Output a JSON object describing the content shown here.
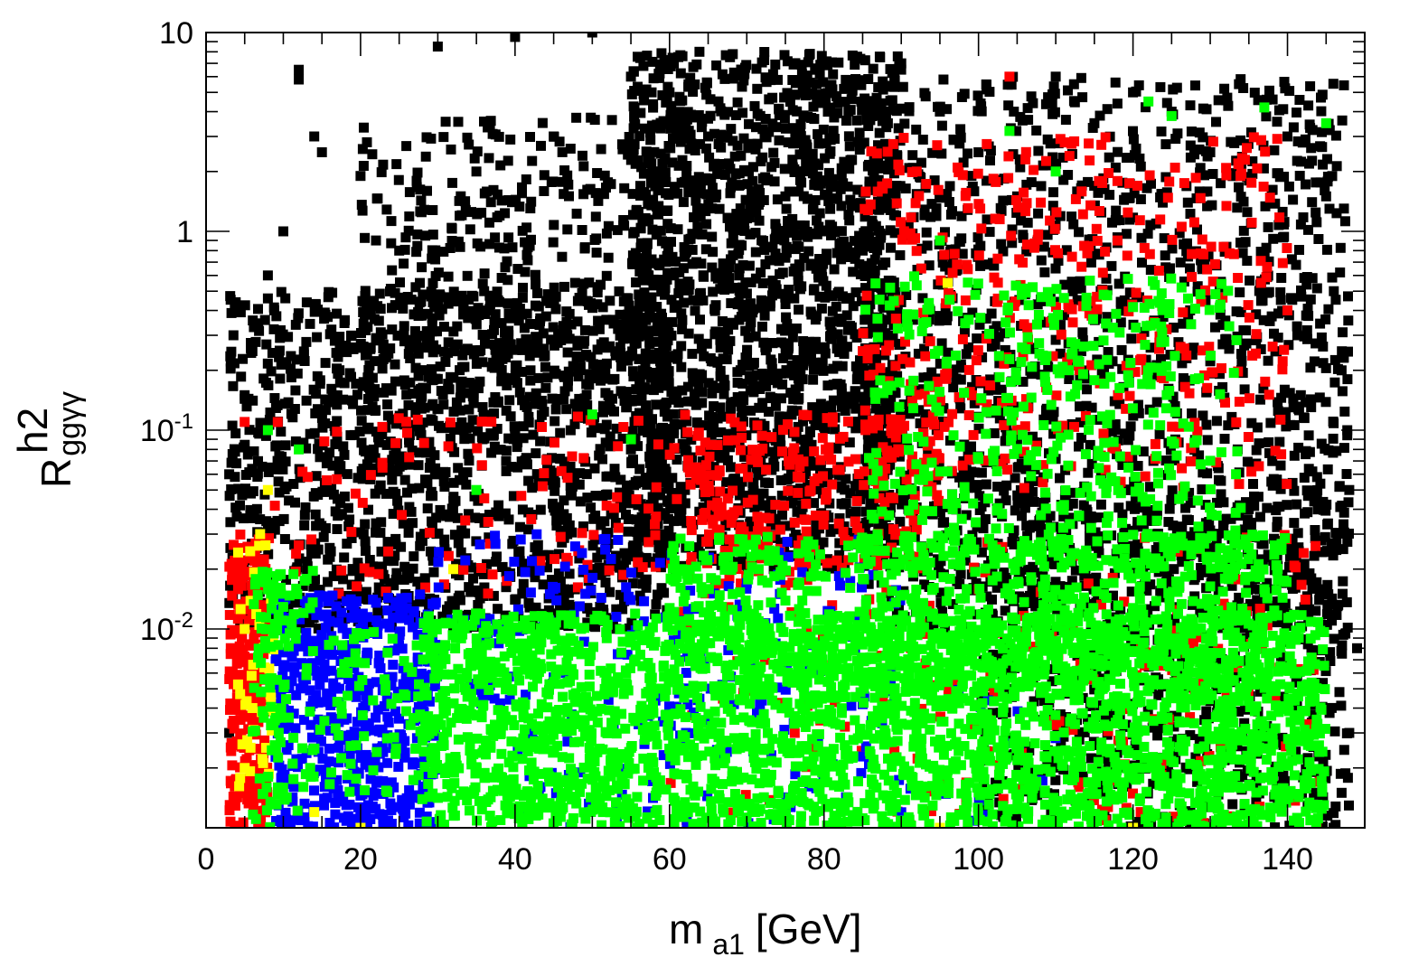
{
  "chart_data": {
    "type": "scatter",
    "title": "",
    "xlabel": {
      "main": "m",
      "sub": "a1",
      "unit": "[GeV]"
    },
    "ylabel": {
      "main": "R",
      "sup": "h2",
      "sub": "ggγγ"
    },
    "xlim": [
      0,
      150
    ],
    "ylim": [
      0.001,
      10
    ],
    "yscale": "log",
    "grid": false,
    "legend": "none",
    "x_ticks": [
      "0",
      "20",
      "40",
      "60",
      "80",
      "100",
      "120",
      "140"
    ],
    "x_tick_values": [
      0,
      20,
      40,
      60,
      80,
      100,
      120,
      140
    ],
    "y_ticks": [
      {
        "value": 10,
        "base": "10",
        "exp": ""
      },
      {
        "value": 1,
        "base": "1",
        "exp": ""
      },
      {
        "value": 0.1,
        "base": "10",
        "exp": "-1"
      },
      {
        "value": 0.01,
        "base": "10",
        "exp": "-2"
      }
    ],
    "series_colors": {
      "black": "#000000",
      "red": "#ff0000",
      "blue": "#0000ff",
      "yellow": "#ffff00",
      "green": "#00ff00"
    },
    "series": [
      {
        "color": "black",
        "points": [
          [
            12,
            6.5
          ],
          [
            12,
            5.8
          ],
          [
            14,
            3
          ],
          [
            15,
            2.5
          ],
          [
            10,
            1
          ],
          [
            8,
            0.6
          ],
          [
            6,
            0.25
          ],
          [
            5,
            0.15
          ],
          [
            20,
            1.9
          ],
          [
            22,
            0.9
          ],
          [
            25,
            0.8
          ],
          [
            30,
            8.5
          ],
          [
            35,
            2
          ],
          [
            38,
            1.2
          ],
          [
            40,
            9.5
          ],
          [
            45,
            3
          ],
          [
            50,
            10
          ],
          [
            55,
            6
          ],
          [
            60,
            5
          ],
          [
            65,
            3
          ],
          [
            70,
            2
          ],
          [
            75,
            1.5
          ],
          [
            80,
            1
          ],
          [
            85,
            0.8
          ],
          [
            90,
            7
          ],
          [
            95,
            4
          ],
          [
            100,
            2.5
          ],
          [
            105,
            1.5
          ],
          [
            110,
            6
          ],
          [
            115,
            3.5
          ],
          [
            120,
            5
          ],
          [
            125,
            4
          ],
          [
            130,
            2.5
          ],
          [
            135,
            1.8
          ],
          [
            140,
            3
          ],
          [
            145,
            1.5
          ],
          [
            146,
            0.5
          ],
          [
            147,
            0.2
          ],
          [
            148,
            0.05
          ],
          [
            149,
            0.008
          ],
          [
            148,
            0.003
          ],
          [
            147,
            0.0015
          ],
          [
            3,
            0.06
          ],
          [
            3,
            0.003
          ],
          [
            36,
            0.5
          ],
          [
            42,
            0.2
          ],
          [
            48,
            0.12
          ],
          [
            55,
            0.08
          ],
          [
            62,
            0.05
          ]
        ],
        "clouds": [
          {
            "xr": [
              55,
              90
            ],
            "yr": [
              0.02,
              8
            ],
            "n": 1800
          },
          {
            "xr": [
              3,
              60
            ],
            "yr": [
              0.01,
              0.5
            ],
            "n": 1400
          },
          {
            "xr": [
              20,
              60
            ],
            "yr": [
              0.1,
              4
            ],
            "n": 420
          },
          {
            "xr": [
              85,
              148
            ],
            "yr": [
              0.01,
              6
            ],
            "n": 1500
          },
          {
            "xr": [
              100,
              148
            ],
            "yr": [
              0.001,
              0.05
            ],
            "n": 700
          }
        ]
      },
      {
        "color": "red",
        "points": [
          [
            5,
            0.11
          ],
          [
            104,
            6
          ],
          [
            140,
            0.4
          ],
          [
            92,
            2
          ],
          [
            118,
            0.9
          ],
          [
            85,
            0.25
          ]
        ],
        "clouds": [
          {
            "xr": [
              3,
              8
            ],
            "yr": [
              0.001,
              0.03
            ],
            "n": 260
          },
          {
            "xr": [
              8,
              70
            ],
            "yr": [
              0.015,
              0.12
            ],
            "n": 130
          },
          {
            "xr": [
              62,
              95
            ],
            "yr": [
              0.02,
              0.12
            ],
            "n": 230
          },
          {
            "xr": [
              85,
              140
            ],
            "yr": [
              0.05,
              3
            ],
            "n": 400
          },
          {
            "xr": [
              60,
              145
            ],
            "yr": [
              0.001,
              0.03
            ],
            "n": 220
          }
        ]
      },
      {
        "color": "blue",
        "points": [],
        "clouds": [
          {
            "xr": [
              9,
              30
            ],
            "yr": [
              0.001,
              0.015
            ],
            "n": 520
          },
          {
            "xr": [
              30,
              90
            ],
            "yr": [
              0.004,
              0.03
            ],
            "n": 170
          },
          {
            "xr": [
              40,
              110
            ],
            "yr": [
              0.001,
              0.005
            ],
            "n": 100
          }
        ]
      },
      {
        "color": "yellow",
        "points": [
          [
            96,
            0.55
          ],
          [
            8,
            0.05
          ],
          [
            7,
            0.03
          ],
          [
            5,
            0.01
          ],
          [
            6,
            0.004
          ],
          [
            5,
            0.002
          ],
          [
            14,
            0.0012
          ],
          [
            20,
            0.001
          ],
          [
            32,
            0.02
          ],
          [
            95,
            0.001
          ],
          [
            120,
            0.001
          ]
        ],
        "clouds": [
          {
            "xr": [
              4,
              9
            ],
            "yr": [
              0.0015,
              0.03
            ],
            "n": 40
          }
        ]
      },
      {
        "color": "green",
        "points": [
          [
            122,
            4.5
          ],
          [
            125,
            3.8
          ],
          [
            137,
            4.2
          ],
          [
            145,
            3.5
          ],
          [
            104,
            3.2
          ],
          [
            95,
            0.9
          ],
          [
            110,
            2
          ],
          [
            50,
            0.12
          ],
          [
            55,
            0.09
          ],
          [
            35,
            0.05
          ],
          [
            12,
            0.08
          ],
          [
            8,
            0.1
          ]
        ],
        "clouds": [
          {
            "xr": [
              28,
              145
            ],
            "yr": [
              0.001,
              0.012
            ],
            "n": 2600
          },
          {
            "xr": [
              60,
              140
            ],
            "yr": [
              0.005,
              0.03
            ],
            "n": 800
          },
          {
            "xr": [
              85,
              135
            ],
            "yr": [
              0.02,
              0.6
            ],
            "n": 420
          },
          {
            "xr": [
              6,
              14
            ],
            "yr": [
              0.001,
              0.02
            ],
            "n": 120
          },
          {
            "xr": [
              14,
              30
            ],
            "yr": [
              0.0015,
              0.01
            ],
            "n": 80
          }
        ]
      }
    ]
  }
}
